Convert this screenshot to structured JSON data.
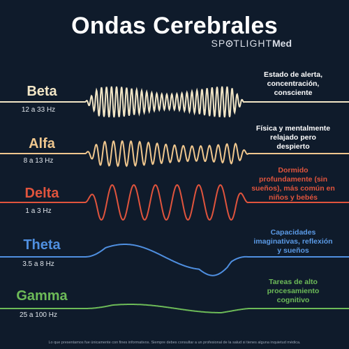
{
  "title": "Ondas Cerebrales",
  "brand": {
    "part1": "SP",
    "part2": "TLIGHT",
    "part3": "Med",
    "logo_o_icon": "spotlight-ring-icon"
  },
  "waves": [
    {
      "key": "beta",
      "name": "Beta",
      "range": "12 a 33 Hz",
      "color": "#f2e6c6",
      "description": [
        "Estado de alerta,",
        "concentración,",
        "consciente"
      ],
      "desc_color": "#ffffff"
    },
    {
      "key": "alfa",
      "name": "Alfa",
      "range": "8 a 13 Hz",
      "color": "#f0c78e",
      "description": [
        "Física y mentalmente",
        "relajado pero",
        "despierto"
      ],
      "desc_color": "#ffffff"
    },
    {
      "key": "delta",
      "name": "Delta",
      "range": "1 a 3 Hz",
      "color": "#e0543d",
      "description": [
        "Dormido",
        "profundamente (sin",
        "sueños), más común en",
        "niños y bebés"
      ],
      "desc_color": "#e0543d"
    },
    {
      "key": "theta",
      "name": "Theta",
      "range": "3.5 a 8 Hz",
      "color": "#4f8fe0",
      "description": [
        "Capacidades",
        "imaginativas, reflexión",
        "y sueños"
      ],
      "desc_color": "#5b9ae6"
    },
    {
      "key": "gamma",
      "name": "Gamma",
      "range": "25 a 100 Hz",
      "color": "#6dbb58",
      "description": [
        "Tareas de alto",
        "procesamiento",
        "cognitivo"
      ],
      "desc_color": "#6dbb58"
    }
  ],
  "footer": "Lo que presentamos fue únicamente con fines informativos. Siempre debes consultar a un profesional de la salud si tienes alguna inquietud médica."
}
